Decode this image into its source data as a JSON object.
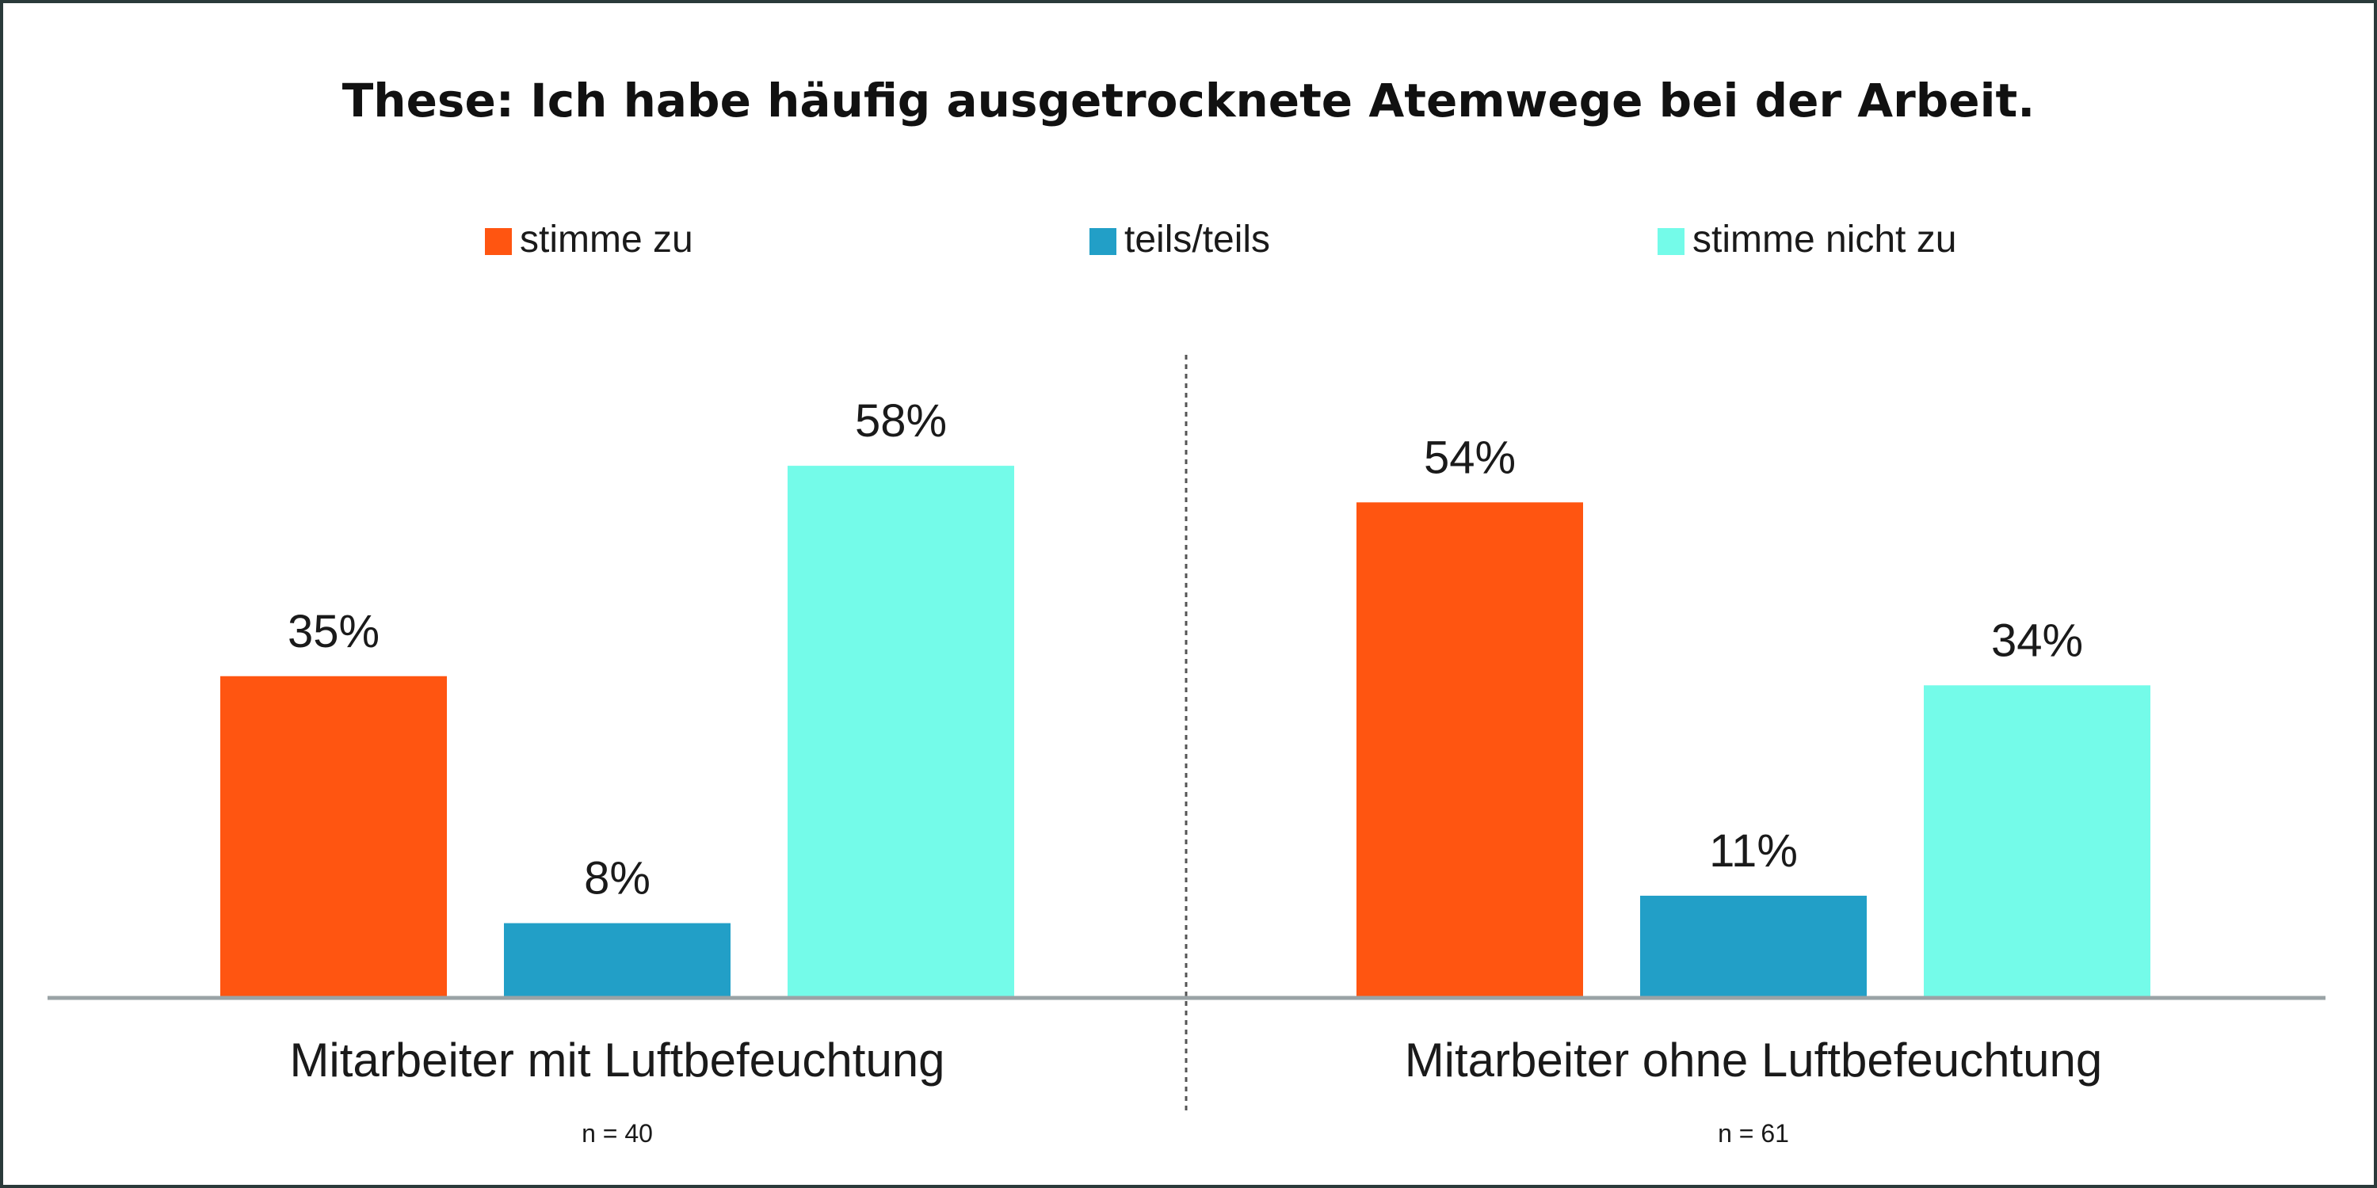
{
  "chart_data": {
    "type": "bar",
    "title": "These: Ich habe häufig ausgetrocknete Atemwege bei der Arbeit.",
    "xlabel": "",
    "ylabel": "",
    "ylim": [
      0,
      60
    ],
    "grid": false,
    "legend_position": "top",
    "categories": [
      "Mitarbeiter mit Luftbefeuchtung",
      "Mitarbeiter ohne Luftbefeuchtung"
    ],
    "category_notes": [
      "n = 40",
      "n = 61"
    ],
    "series": [
      {
        "name": "stimme zu",
        "values": [
          35,
          54
        ],
        "labels": [
          "35%",
          "54%"
        ],
        "color": "#FF5511"
      },
      {
        "name": "teils/teils",
        "values": [
          8,
          11
        ],
        "labels": [
          "8%",
          "11%"
        ],
        "color": "#229FC7"
      },
      {
        "name": "stimme nicht zu",
        "values": [
          58,
          34
        ],
        "labels": [
          "58%",
          "34%"
        ],
        "color": "#74FBE9"
      }
    ]
  }
}
